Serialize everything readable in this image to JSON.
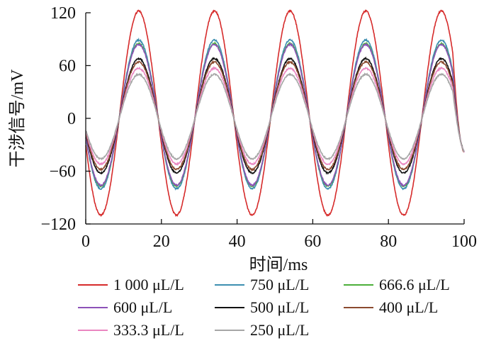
{
  "chart_data": {
    "type": "line",
    "title": "",
    "xlabel": "时间/ms",
    "ylabel": "干涉信号/mV",
    "xlim": [
      0,
      100
    ],
    "ylim": [
      -120,
      120
    ],
    "x_ticks": [
      "0",
      "20",
      "40",
      "60",
      "80",
      "100"
    ],
    "y_ticks": [
      "−120",
      "−60",
      "0",
      "60",
      "120"
    ],
    "y_tick_values": [
      -120,
      -60,
      0,
      60,
      120
    ],
    "x_tick_values": [
      0,
      20,
      40,
      60,
      80,
      100
    ],
    "grid": false,
    "legend_position": "bottom",
    "waveform": {
      "shape": "sinusoid",
      "period_ms": 20,
      "first_peak_ms": 14,
      "end_value_mV": -38
    },
    "series": [
      {
        "name": "1 000 μL/L",
        "color": "#d62b2b",
        "peak_mV": 122,
        "trough_mV": -110
      },
      {
        "name": "750 μL/L",
        "color": "#3d8fb0",
        "peak_mV": 89,
        "trough_mV": -80
      },
      {
        "name": "666.6 μL/L",
        "color": "#4caf3a",
        "peak_mV": 85,
        "trough_mV": -77
      },
      {
        "name": "600 μL/L",
        "color": "#8c52b8",
        "peak_mV": 84,
        "trough_mV": -76
      },
      {
        "name": "500 μL/L",
        "color": "#111111",
        "peak_mV": 68,
        "trough_mV": -62
      },
      {
        "name": "400 μL/L",
        "color": "#8b4a2f",
        "peak_mV": 64,
        "trough_mV": -58
      },
      {
        "name": "333.3 μL/L",
        "color": "#ea86c0",
        "peak_mV": 57,
        "trough_mV": -52
      },
      {
        "name": "250 μL/L",
        "color": "#a6a6a6",
        "peak_mV": 50,
        "trough_mV": -46
      }
    ]
  }
}
